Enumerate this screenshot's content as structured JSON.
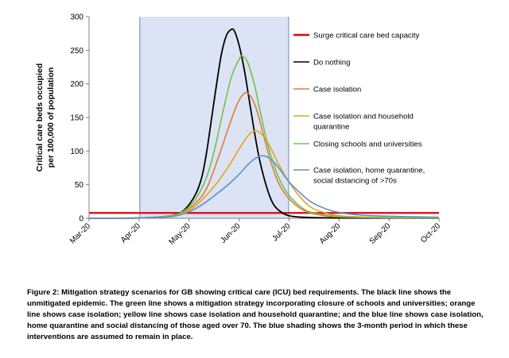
{
  "chart_data": {
    "type": "line",
    "ylabel_lines": [
      "Critical care beds occupied",
      "per 100,000 of population"
    ],
    "x_tick_labels": [
      "Mar-20",
      "Apr-20",
      "May-20",
      "Jun-20",
      "Jul-20",
      "Aug-20",
      "Sep-20",
      "Oct-20"
    ],
    "xlim": [
      "2020-03-01",
      "2020-10-01"
    ],
    "ylim": [
      0,
      300
    ],
    "y_ticks": [
      0,
      50,
      100,
      150,
      200,
      250,
      300
    ],
    "intervention_period": {
      "start": "2020-04-01",
      "end": "2020-07-01",
      "color": "#dbe3f4",
      "edge_color": "#9aa9cc"
    },
    "legend_placement": "right",
    "capacity_line": {
      "name": "Surge critical care bed capacity",
      "value": 8,
      "color": "#e8000b"
    },
    "series": [
      {
        "name": "Do nothing",
        "color": "#000000",
        "points": [
          [
            "2020-03-01",
            0
          ],
          [
            "2020-04-01",
            0.5
          ],
          [
            "2020-04-20",
            4
          ],
          [
            "2020-04-28",
            12
          ],
          [
            "2020-05-05",
            35
          ],
          [
            "2020-05-09",
            62
          ],
          [
            "2020-05-12",
            100
          ],
          [
            "2020-05-15",
            150
          ],
          [
            "2020-05-18",
            200
          ],
          [
            "2020-05-21",
            245
          ],
          [
            "2020-05-24",
            272
          ],
          [
            "2020-05-27",
            281
          ],
          [
            "2020-05-29",
            278
          ],
          [
            "2020-06-01",
            255
          ],
          [
            "2020-06-04",
            220
          ],
          [
            "2020-06-07",
            175
          ],
          [
            "2020-06-10",
            130
          ],
          [
            "2020-06-13",
            90
          ],
          [
            "2020-06-16",
            60
          ],
          [
            "2020-06-19",
            36
          ],
          [
            "2020-06-22",
            20
          ],
          [
            "2020-06-26",
            10
          ],
          [
            "2020-07-01",
            4
          ],
          [
            "2020-07-10",
            1.5
          ],
          [
            "2020-08-01",
            0.5
          ],
          [
            "2020-10-01",
            0
          ]
        ]
      },
      {
        "name": "Case isolation",
        "color": "#e07b39",
        "points": [
          [
            "2020-03-01",
            0
          ],
          [
            "2020-04-01",
            0.5
          ],
          [
            "2020-04-20",
            4
          ],
          [
            "2020-04-28",
            10
          ],
          [
            "2020-05-05",
            22
          ],
          [
            "2020-05-12",
            45
          ],
          [
            "2020-05-19",
            90
          ],
          [
            "2020-05-26",
            140
          ],
          [
            "2020-05-31",
            172
          ],
          [
            "2020-06-04",
            186
          ],
          [
            "2020-06-07",
            184
          ],
          [
            "2020-06-11",
            165
          ],
          [
            "2020-06-15",
            130
          ],
          [
            "2020-06-20",
            85
          ],
          [
            "2020-06-25",
            52
          ],
          [
            "2020-07-01",
            30
          ],
          [
            "2020-07-10",
            12
          ],
          [
            "2020-07-20",
            5
          ],
          [
            "2020-08-01",
            2
          ],
          [
            "2020-09-01",
            0.5
          ],
          [
            "2020-10-01",
            0
          ]
        ]
      },
      {
        "name": "Case isolation and household quarantine",
        "color": "#e8a317",
        "points": [
          [
            "2020-03-01",
            0
          ],
          [
            "2020-04-01",
            0.5
          ],
          [
            "2020-04-20",
            3
          ],
          [
            "2020-04-28",
            8
          ],
          [
            "2020-05-05",
            18
          ],
          [
            "2020-05-12",
            35
          ],
          [
            "2020-05-19",
            55
          ],
          [
            "2020-05-26",
            80
          ],
          [
            "2020-06-02",
            108
          ],
          [
            "2020-06-07",
            125
          ],
          [
            "2020-06-11",
            130
          ],
          [
            "2020-06-15",
            124
          ],
          [
            "2020-06-20",
            105
          ],
          [
            "2020-06-25",
            80
          ],
          [
            "2020-07-01",
            55
          ],
          [
            "2020-07-08",
            32
          ],
          [
            "2020-07-15",
            16
          ],
          [
            "2020-07-25",
            7
          ],
          [
            "2020-08-05",
            3
          ],
          [
            "2020-09-01",
            1
          ],
          [
            "2020-10-01",
            0.2
          ]
        ]
      },
      {
        "name": "Closing schools and universities",
        "color": "#70c24a",
        "points": [
          [
            "2020-03-01",
            0
          ],
          [
            "2020-04-01",
            0.5
          ],
          [
            "2020-04-20",
            4
          ],
          [
            "2020-04-28",
            11
          ],
          [
            "2020-05-05",
            28
          ],
          [
            "2020-05-12",
            62
          ],
          [
            "2020-05-17",
            105
          ],
          [
            "2020-05-22",
            160
          ],
          [
            "2020-05-27",
            210
          ],
          [
            "2020-06-01",
            238
          ],
          [
            "2020-06-03",
            241
          ],
          [
            "2020-06-06",
            232
          ],
          [
            "2020-06-10",
            200
          ],
          [
            "2020-06-14",
            155
          ],
          [
            "2020-06-18",
            112
          ],
          [
            "2020-06-22",
            80
          ],
          [
            "2020-06-26",
            55
          ],
          [
            "2020-07-01",
            35
          ],
          [
            "2020-07-08",
            18
          ],
          [
            "2020-07-15",
            9
          ],
          [
            "2020-08-01",
            3
          ],
          [
            "2020-09-01",
            1
          ],
          [
            "2020-10-01",
            0.2
          ]
        ]
      },
      {
        "name": "Case isolation, home quarantine, social distancing of >70s",
        "color": "#5b8fd3",
        "points": [
          [
            "2020-03-01",
            0
          ],
          [
            "2020-04-01",
            0.5
          ],
          [
            "2020-04-20",
            2.5
          ],
          [
            "2020-04-28",
            7
          ],
          [
            "2020-05-05",
            14
          ],
          [
            "2020-05-12",
            25
          ],
          [
            "2020-05-19",
            38
          ],
          [
            "2020-05-26",
            52
          ],
          [
            "2020-06-01",
            66
          ],
          [
            "2020-06-07",
            82
          ],
          [
            "2020-06-12",
            91
          ],
          [
            "2020-06-16",
            93
          ],
          [
            "2020-06-20",
            88
          ],
          [
            "2020-06-25",
            75
          ],
          [
            "2020-07-01",
            55
          ],
          [
            "2020-07-08",
            38
          ],
          [
            "2020-07-15",
            24
          ],
          [
            "2020-07-25",
            13
          ],
          [
            "2020-08-05",
            7
          ],
          [
            "2020-08-20",
            4
          ],
          [
            "2020-09-10",
            2.5
          ],
          [
            "2020-10-01",
            1.5
          ]
        ]
      }
    ],
    "legend_entries": [
      {
        "lines": [
          "Surge critical care bed capacity"
        ],
        "color": "#e8000b",
        "thick": true
      },
      {
        "lines": [
          "Do nothing"
        ],
        "color": "#000000",
        "thick": false
      },
      {
        "lines": [
          "Case isolation"
        ],
        "color": "#e07b39",
        "thick": false
      },
      {
        "lines": [
          "Case isolation and household",
          "quarantine"
        ],
        "color": "#e8a317",
        "thick": false
      },
      {
        "lines": [
          "Closing schools and universities"
        ],
        "color": "#70c24a",
        "thick": false
      },
      {
        "lines": [
          "Case isolation, home quarantine,",
          "social distancing of >70s"
        ],
        "color": "#5b8fd3",
        "thick": false
      }
    ]
  },
  "caption": {
    "text": "Figure 2: Mitigation strategy scenarios for GB showing critical care (ICU) bed requirements. The black line shows the unmitigated epidemic. The green line shows a mitigation strategy incorporating closure of schools and universities; orange line shows case isolation; yellow line shows case isolation and household quarantine; and the blue line shows case isolation, home quarantine and social distancing of those aged over 70. The blue shading shows the 3-month period in which these interventions are assumed to remain in place."
  }
}
